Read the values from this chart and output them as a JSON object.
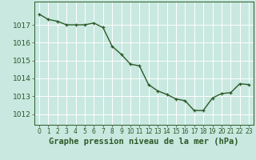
{
  "x": [
    0,
    1,
    2,
    3,
    4,
    5,
    6,
    7,
    8,
    9,
    10,
    11,
    12,
    13,
    14,
    15,
    16,
    17,
    18,
    19,
    20,
    21,
    22,
    23
  ],
  "y": [
    1017.6,
    1017.3,
    1017.2,
    1017.0,
    1017.0,
    1017.0,
    1017.1,
    1016.85,
    1015.8,
    1015.35,
    1014.8,
    1014.7,
    1013.65,
    1013.3,
    1013.1,
    1012.85,
    1012.75,
    1012.2,
    1012.2,
    1012.9,
    1013.15,
    1013.2,
    1013.7,
    1013.65
  ],
  "line_color": "#2d5a27",
  "marker": "+",
  "marker_color": "#2d5a27",
  "bg_color": "#c8e8e0",
  "grid_color": "#ffffff",
  "xlabel": "Graphe pression niveau de la mer (hPa)",
  "xlabel_color": "#2d5a27",
  "tick_color": "#2d5a27",
  "ylabel_ticks": [
    1012,
    1013,
    1014,
    1015,
    1016,
    1017
  ],
  "ylim": [
    1011.4,
    1018.3
  ],
  "xlim": [
    -0.5,
    23.5
  ],
  "xtick_labels": [
    "0",
    "1",
    "2",
    "3",
    "4",
    "5",
    "6",
    "7",
    "8",
    "9",
    "10",
    "11",
    "12",
    "13",
    "14",
    "15",
    "16",
    "17",
    "18",
    "19",
    "20",
    "21",
    "22",
    "23"
  ],
  "xlabel_fontsize": 7.5,
  "ytick_fontsize": 6.5,
  "xtick_fontsize": 5.5,
  "linewidth": 1.0,
  "markersize": 3.5
}
